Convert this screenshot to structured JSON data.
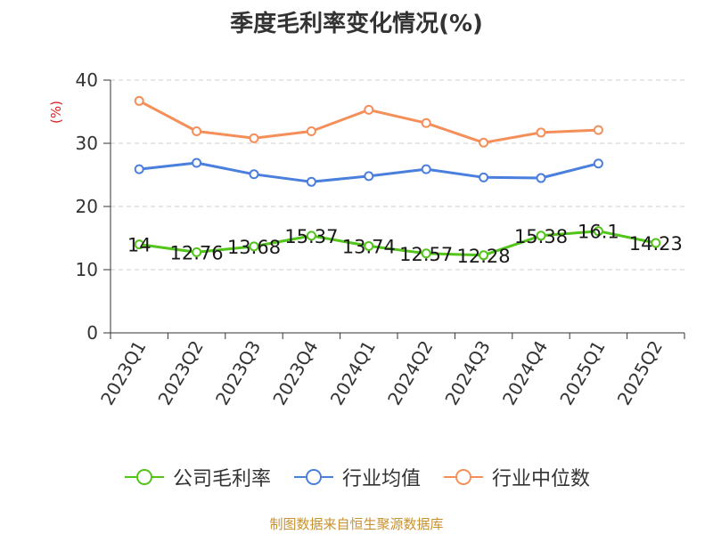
{
  "chart_data": {
    "type": "line",
    "title": "季度毛利率变化情况(%)",
    "ylabel": "(%)",
    "ylim": [
      0,
      40
    ],
    "yticks": [
      0,
      10,
      20,
      30,
      40
    ],
    "categories": [
      "2023Q1",
      "2023Q2",
      "2023Q3",
      "2023Q4",
      "2024Q1",
      "2024Q2",
      "2024Q3",
      "2024Q4",
      "2025Q1",
      "2025Q2"
    ],
    "series": [
      {
        "name": "公司毛利率",
        "color": "#52c41a",
        "values": [
          14,
          12.76,
          13.68,
          15.37,
          13.74,
          12.57,
          12.28,
          15.38,
          16.1,
          14.23
        ],
        "labels": [
          "14",
          "12.76",
          "13.68",
          "15.37",
          "13.74",
          "12.57",
          "12.28",
          "15.38",
          "16.1",
          "14.23"
        ]
      },
      {
        "name": "行业均值",
        "color": "#4a7fdd",
        "values": [
          25.9,
          26.9,
          25.1,
          23.9,
          24.8,
          25.9,
          24.6,
          24.5,
          26.8,
          null
        ]
      },
      {
        "name": "行业中位数",
        "color": "#f58f5a",
        "values": [
          36.7,
          31.9,
          30.8,
          31.9,
          35.3,
          33.2,
          30.1,
          31.7,
          32.1,
          null
        ]
      }
    ],
    "grid": true,
    "legend_position": "bottom"
  },
  "footer": "制图数据来自恒生聚源数据库"
}
